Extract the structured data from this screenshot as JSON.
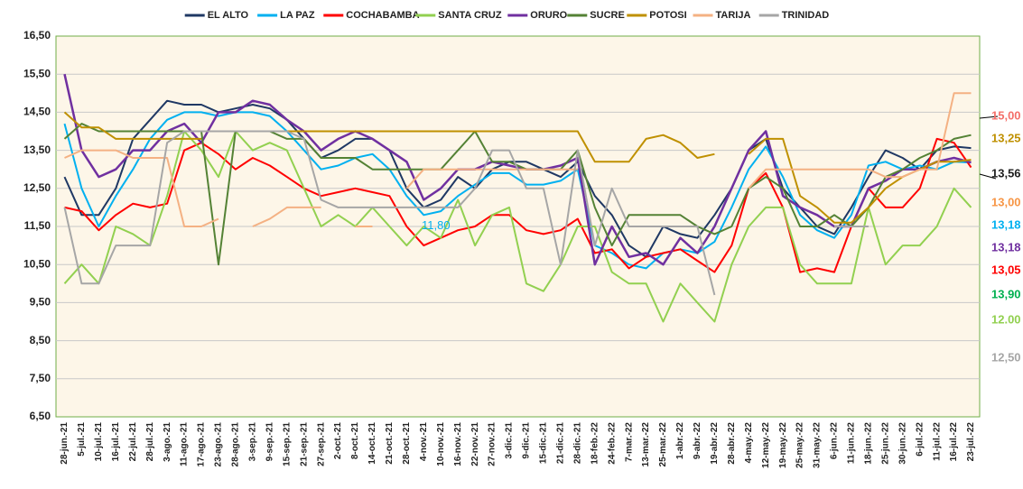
{
  "chart_data": {
    "type": "line",
    "categories": [
      "28-jun.-21",
      "5-jul.-21",
      "10-jul.-21",
      "16-jul.-21",
      "22-jul.-21",
      "28-jul.-21",
      "3-ago.-21",
      "11-ago.-21",
      "17-ago.-21",
      "23-ago.-21",
      "28-ago.-21",
      "3-sep.-21",
      "9-sep.-21",
      "15-sep.-21",
      "21-sep.-21",
      "27-sep.-21",
      "2-oct.-21",
      "8-oct.-21",
      "14-oct.-21",
      "21-oct.-21",
      "28-oct.-21",
      "4-nov.-21",
      "10-nov.-21",
      "16-nov.-21",
      "22-nov.-21",
      "27-nov.-21",
      "3-dic.-21",
      "9-dic.-21",
      "15-dic.-21",
      "21-dic.-21",
      "28-dic.-21",
      "18-feb.-22",
      "24-feb.-22",
      "7-mar.-22",
      "13-mar.-22",
      "25-mar.-22",
      "1-abr.-22",
      "9-abr.-22",
      "19-abr.-22",
      "28-abr.-22",
      "4-may.-22",
      "12-may.-22",
      "19-may.-22",
      "25-may.-22",
      "31-may.-22",
      "6-jun.-22",
      "11-jun.-22",
      "18-jun.-22",
      "25-jun.-22",
      "30-jun.-22",
      "6-jul.-22",
      "11-jul.-22",
      "16-jul.-22",
      "23-jul.-22"
    ],
    "series": [
      {
        "name": "EL ALTO",
        "color": "#1f3864",
        "values": [
          12.8,
          11.8,
          11.8,
          12.5,
          13.8,
          14.3,
          14.8,
          14.7,
          14.7,
          14.5,
          14.6,
          14.7,
          14.6,
          14.3,
          13.8,
          13.3,
          13.5,
          13.8,
          13.8,
          13.5,
          12.5,
          12.0,
          12.2,
          12.8,
          12.5,
          13.0,
          13.2,
          13.2,
          13.0,
          12.8,
          13.2,
          12.3,
          11.8,
          11.0,
          10.7,
          11.5,
          11.3,
          11.2,
          11.8,
          12.5,
          13.5,
          13.8,
          12.5,
          12.0,
          11.5,
          11.3,
          12.0,
          12.8,
          13.5,
          13.3,
          13.0,
          13.5,
          13.6,
          13.56
        ]
      },
      {
        "name": "LA PAZ",
        "color": "#00b0f0",
        "values": [
          14.2,
          12.5,
          11.5,
          12.3,
          13.0,
          13.8,
          14.3,
          14.5,
          14.5,
          14.4,
          14.5,
          14.5,
          14.4,
          14.0,
          13.5,
          13.0,
          13.1,
          13.3,
          13.4,
          13.0,
          12.3,
          11.8,
          11.9,
          12.3,
          12.6,
          12.9,
          12.9,
          12.6,
          12.6,
          12.7,
          13.0,
          11.0,
          10.8,
          10.5,
          10.4,
          10.8,
          10.9,
          10.8,
          11.1,
          12.0,
          13.0,
          13.6,
          12.8,
          11.8,
          11.4,
          11.2,
          11.8,
          13.1,
          13.2,
          13.0,
          13.1,
          13.0,
          13.2,
          13.18
        ]
      },
      {
        "name": "COCHABAMBA",
        "color": "#ff0000",
        "values": [
          12.0,
          11.9,
          11.4,
          11.8,
          12.1,
          12.0,
          12.1,
          13.5,
          13.7,
          13.4,
          13.0,
          13.3,
          13.1,
          12.8,
          12.5,
          12.3,
          12.4,
          12.5,
          12.4,
          12.3,
          11.5,
          11.0,
          11.2,
          11.4,
          11.5,
          11.8,
          11.8,
          11.4,
          11.3,
          11.4,
          11.7,
          10.8,
          10.9,
          10.4,
          10.7,
          10.8,
          10.9,
          10.6,
          10.3,
          11.0,
          12.5,
          12.9,
          12.0,
          10.3,
          10.4,
          10.3,
          11.5,
          12.5,
          12.0,
          12.0,
          12.5,
          13.8,
          13.7,
          13.05
        ]
      },
      {
        "name": "SANTA CRUZ",
        "color": "#92d050",
        "values": [
          10.0,
          10.5,
          10.0,
          11.5,
          11.3,
          11.0,
          12.3,
          14.0,
          13.5,
          12.8,
          14.0,
          13.5,
          13.7,
          13.5,
          12.5,
          11.5,
          11.8,
          11.5,
          12.0,
          11.5,
          11.0,
          11.5,
          11.2,
          12.2,
          11.0,
          11.8,
          12.0,
          10.0,
          9.8,
          10.5,
          11.5,
          11.5,
          10.3,
          10.0,
          10.0,
          9.0,
          10.0,
          9.5,
          9.0,
          10.5,
          11.5,
          12.0,
          12.0,
          10.5,
          10.0,
          10.0,
          10.0,
          12.0,
          10.5,
          11.0,
          11.0,
          11.5,
          12.5,
          12.0
        ]
      },
      {
        "name": "ORURO",
        "color": "#7030a0",
        "values": [
          15.5,
          13.5,
          12.8,
          13.0,
          13.5,
          13.5,
          14.0,
          14.2,
          13.7,
          14.5,
          14.5,
          14.8,
          14.7,
          14.3,
          14.0,
          13.5,
          13.8,
          14.0,
          13.8,
          13.5,
          13.2,
          12.2,
          12.5,
          13.0,
          13.0,
          13.2,
          13.1,
          13.0,
          13.0,
          13.1,
          13.3,
          10.5,
          11.5,
          10.7,
          10.8,
          10.5,
          11.2,
          10.8,
          11.5,
          12.5,
          13.5,
          14.0,
          12.3,
          12.0,
          11.8,
          11.5,
          11.5,
          12.5,
          12.7,
          13.0,
          13.0,
          13.2,
          13.3,
          13.18
        ]
      },
      {
        "name": "SUCRE",
        "color": "#548235",
        "values": [
          13.8,
          14.2,
          14.0,
          14.0,
          14.0,
          14.0,
          14.0,
          14.0,
          14.0,
          10.5,
          14.0,
          14.0,
          14.0,
          13.8,
          13.8,
          13.3,
          13.3,
          13.3,
          13.0,
          13.0,
          13.0,
          13.0,
          13.0,
          13.5,
          14.0,
          13.2,
          13.2,
          13.0,
          13.0,
          13.0,
          13.5,
          12.0,
          11.0,
          11.8,
          11.8,
          11.8,
          11.8,
          11.5,
          11.3,
          11.5,
          12.5,
          12.8,
          12.5,
          11.5,
          11.5,
          11.8,
          11.5,
          12.0,
          12.8,
          13.0,
          13.3,
          13.5,
          13.8,
          13.9
        ]
      },
      {
        "name": "POTOSI",
        "color": "#bf9000",
        "values": [
          14.5,
          14.1,
          14.1,
          13.8,
          13.8,
          13.8,
          13.8,
          13.8,
          13.8,
          null,
          14.0,
          14.0,
          14.0,
          14.0,
          14.0,
          14.0,
          14.0,
          14.0,
          14.0,
          14.0,
          14.0,
          14.0,
          14.0,
          14.0,
          14.0,
          14.0,
          14.0,
          14.0,
          14.0,
          14.0,
          14.0,
          13.2,
          13.2,
          13.2,
          13.8,
          13.9,
          13.7,
          13.3,
          13.4,
          null,
          13.4,
          13.8,
          13.8,
          12.3,
          12.0,
          11.6,
          11.6,
          12.0,
          12.5,
          12.8,
          13.0,
          13.2,
          13.2,
          13.25
        ]
      },
      {
        "name": "TARIJA",
        "color": "#f4b183",
        "values": [
          13.3,
          13.5,
          13.5,
          13.5,
          13.3,
          13.3,
          13.3,
          11.5,
          11.5,
          11.7,
          null,
          11.5,
          11.7,
          12.0,
          12.0,
          12.0,
          null,
          11.5,
          11.5,
          null,
          12.5,
          13.0,
          13.0,
          13.0,
          13.0,
          13.0,
          13.0,
          13.0,
          13.0,
          13.0,
          13.0,
          null,
          null,
          null,
          null,
          null,
          null,
          null,
          null,
          null,
          12.5,
          13.0,
          13.0,
          13.0,
          13.0,
          13.0,
          13.0,
          13.0,
          12.8,
          12.8,
          13.0,
          13.0,
          15.0,
          15.0
        ]
      },
      {
        "name": "TRINIDAD",
        "color": "#a6a6a6",
        "values": [
          12.0,
          10.0,
          10.0,
          11.0,
          11.0,
          11.0,
          13.7,
          14.0,
          14.0,
          14.0,
          14.0,
          14.0,
          14.0,
          14.0,
          13.8,
          12.2,
          12.0,
          12.0,
          12.0,
          12.0,
          12.0,
          12.0,
          12.0,
          12.0,
          12.5,
          13.5,
          13.5,
          12.5,
          12.5,
          10.5,
          13.5,
          11.0,
          12.5,
          11.5,
          11.5,
          11.5,
          11.5,
          11.5,
          9.7,
          null,
          null,
          null,
          null,
          null,
          null,
          11.5,
          11.5,
          11.5,
          null,
          null,
          null,
          null,
          null,
          null
        ]
      }
    ],
    "ylim": [
      6.5,
      16.5
    ],
    "yticks": [
      {
        "value": 6.5,
        "label": "6,50"
      },
      {
        "value": 7.5,
        "label": "7,50"
      },
      {
        "value": 8.5,
        "label": "8,50"
      },
      {
        "value": 9.5,
        "label": "9,50"
      },
      {
        "value": 10.5,
        "label": "10,50"
      },
      {
        "value": 11.5,
        "label": "11,50"
      },
      {
        "value": 12.5,
        "label": "12,50"
      },
      {
        "value": 13.5,
        "label": "13,50"
      },
      {
        "value": 14.5,
        "label": "14,50"
      },
      {
        "value": 15.5,
        "label": "15,50"
      },
      {
        "value": 16.5,
        "label": "16,50"
      }
    ],
    "grid": true,
    "legend": "top",
    "annotations": [
      {
        "text": "15,00",
        "color": "#f4706a"
      },
      {
        "text": "13,25",
        "color": "#bf9000"
      },
      {
        "text": "13,56",
        "color": "#1f1f1f"
      },
      {
        "text": "13,00",
        "color": "#f79646"
      },
      {
        "text": "13,18",
        "color": "#00b0f0"
      },
      {
        "text": "13,18",
        "color": "#7030a0"
      },
      {
        "text": "13,05",
        "color": "#ff0000"
      },
      {
        "text": "13,90",
        "color": "#00b050"
      },
      {
        "text": "12.00",
        "color": "#92d050"
      },
      {
        "text": "12,50",
        "color": "#a6a6a6"
      }
    ],
    "inline_label": {
      "text": "11,80",
      "color": "#00b0f0"
    }
  }
}
